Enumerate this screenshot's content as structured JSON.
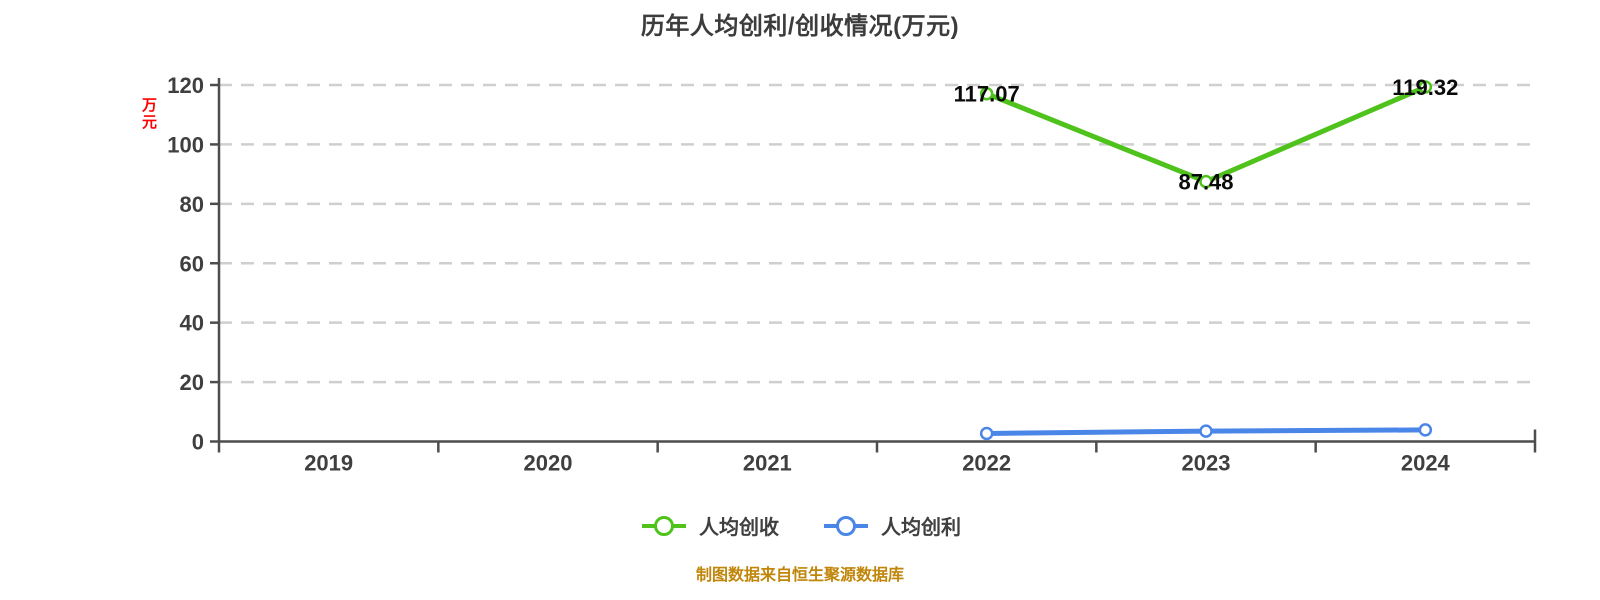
{
  "page": {
    "background": "#ffffff"
  },
  "chart_data": {
    "type": "line",
    "title": "历年人均创利/创收情况(万元)",
    "x_categories": [
      "2019",
      "2020",
      "2021",
      "2022",
      "2023",
      "2024"
    ],
    "y_axis": {
      "unit_label": "万元",
      "min": 0,
      "max": 120,
      "tick_step": 20,
      "ticks": [
        "0",
        "20",
        "40",
        "60",
        "80",
        "100",
        "120"
      ]
    },
    "grid": {
      "horizontal_dashed": true
    },
    "legend_position": "bottom-center",
    "series": [
      {
        "name": "人均创收",
        "color": "#4fc31c",
        "marker": "circle-white-fill",
        "points": [
          {
            "category": "2022",
            "value": 117.07,
            "label": "117.07"
          },
          {
            "category": "2023",
            "value": 87.48,
            "label": "87.48"
          },
          {
            "category": "2024",
            "value": 119.32,
            "label": "119.32"
          }
        ]
      },
      {
        "name": "人均创利",
        "color": "#4a86e8",
        "marker": "circle-white-fill",
        "points": [
          {
            "category": "2022",
            "value": 2.7,
            "label": ""
          },
          {
            "category": "2023",
            "value": 3.5,
            "label": ""
          },
          {
            "category": "2024",
            "value": 3.9,
            "label": ""
          }
        ]
      }
    ]
  },
  "footer": {
    "text": "制图数据来自恒生聚源数据库",
    "color": "#c0860b"
  },
  "colors": {
    "title": "#3c3c3c",
    "axis": "#4d4d4d",
    "tick_label": "#3f3f3f",
    "grid": "#cfcfcf",
    "unit_label": "#fe0000",
    "data_label": "#0a0a0a"
  }
}
